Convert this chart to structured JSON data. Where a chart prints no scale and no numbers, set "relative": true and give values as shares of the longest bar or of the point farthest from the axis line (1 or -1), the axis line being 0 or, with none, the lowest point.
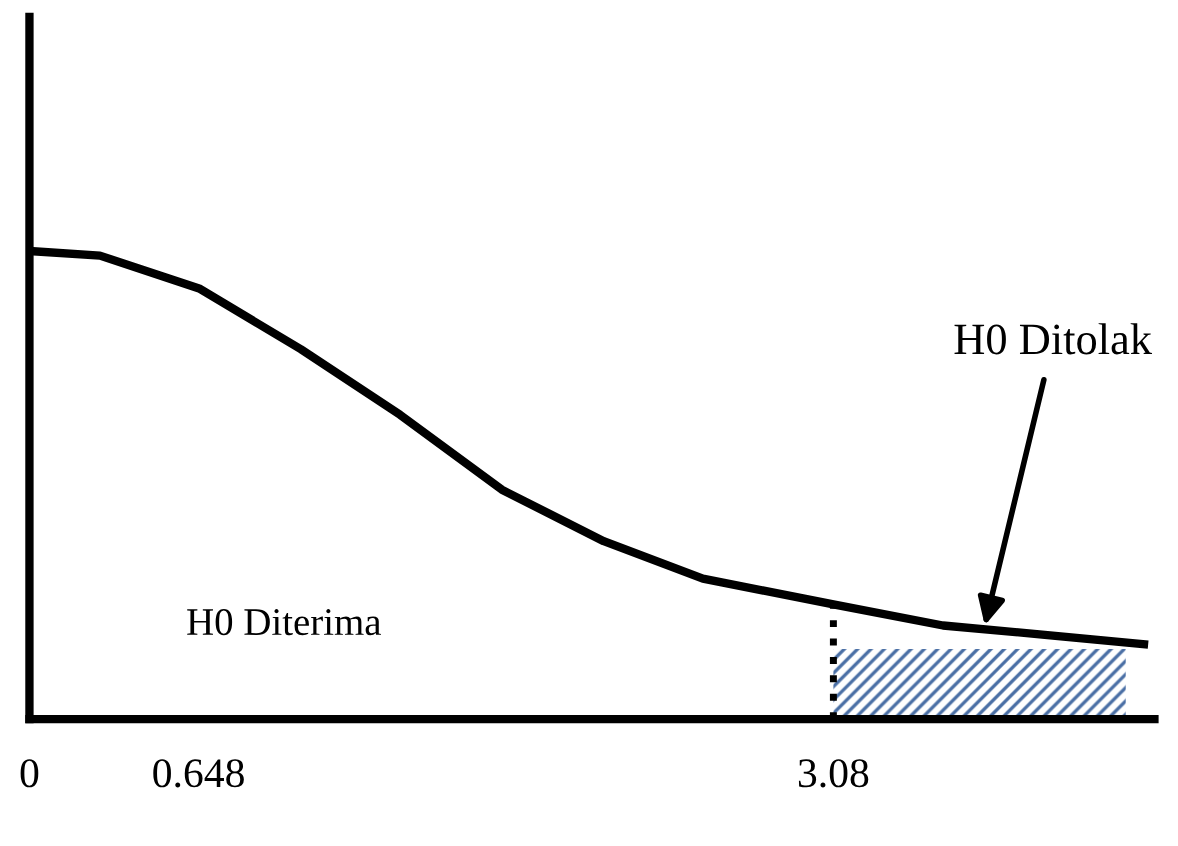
{
  "chart_data": {
    "type": "line",
    "relative": true,
    "x": [
      0,
      0.27,
      0.65,
      1.04,
      1.42,
      1.81,
      2.2,
      2.58,
      3.08,
      3.5,
      3.89,
      4.27
    ],
    "values": [
      1,
      0.99,
      0.92,
      0.79,
      0.65,
      0.49,
      0.38,
      0.3,
      0.245,
      0.2,
      0.18,
      0.16
    ],
    "color": "#000000",
    "xlim": [
      0,
      4.31
    ],
    "xticks": [
      0,
      0.648,
      3.08
    ],
    "ref_lines": [
      {
        "axis": "x",
        "value": 3.08,
        "line_style": "dotted",
        "color": "#000000"
      }
    ],
    "bands": [
      {
        "axis": "x",
        "from": 3.08,
        "to": 4.2,
        "color": "#4a6fa5"
      }
    ],
    "annotations": [
      {
        "text": "H0 Diterima"
      },
      {
        "text": "H0 Ditolak",
        "x": 3.66,
        "y": 0.2
      }
    ],
    "grid": false,
    "legend": false,
    "marker": "none",
    "line_style": "solid"
  }
}
